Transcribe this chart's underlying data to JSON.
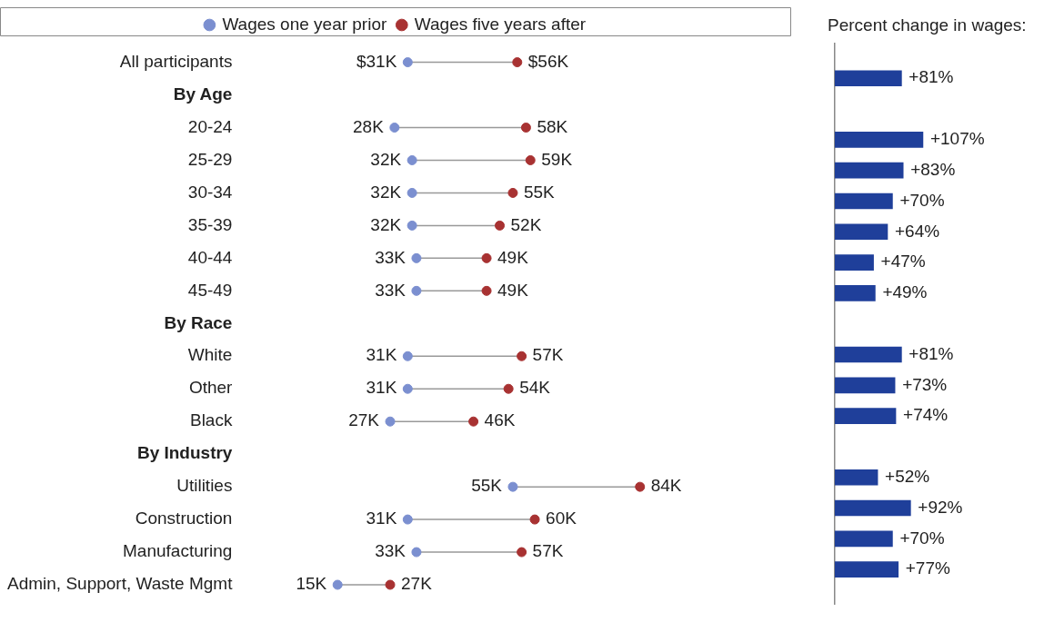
{
  "chart_data": [
    {
      "type": "scatter",
      "orientation": "horizontal",
      "legend": "top",
      "tick_labels": "y",
      "marker": "circle",
      "categories": [
        "All participants",
        "By Age",
        "20-24",
        "25-29",
        "30-34",
        "35-39",
        "40-44",
        "45-49",
        "By Race",
        "White",
        "Other",
        "Black",
        "By Industry",
        "Utilities",
        "Construction",
        "Manufacturing",
        "Admin, Support, Waste Mgmt"
      ],
      "series": [
        {
          "name": "Wages one year prior",
          "color": "#7b8fd0",
          "values": [
            31,
            null,
            28,
            32,
            32,
            32,
            33,
            33,
            null,
            31,
            31,
            27,
            null,
            55,
            31,
            33,
            15
          ],
          "value_labels": [
            "$31K",
            null,
            "28K",
            "32K",
            "32K",
            "32K",
            "33K",
            "33K",
            null,
            "31K",
            "31K",
            "27K",
            null,
            "55K",
            "31K",
            "33K",
            "15K"
          ]
        },
        {
          "name": "Wages five years after",
          "color": "#a83232",
          "values": [
            56,
            null,
            58,
            59,
            55,
            52,
            49,
            49,
            null,
            57,
            54,
            46,
            null,
            84,
            60,
            57,
            27
          ],
          "value_labels": [
            "$56K",
            null,
            "58K",
            "59K",
            "55K",
            "52K",
            "49K",
            "49K",
            null,
            "57K",
            "54K",
            "46K",
            null,
            "84K",
            "60K",
            "57K",
            "27K"
          ]
        }
      ]
    },
    {
      "type": "bar",
      "orientation": "horizontal",
      "title": "Percent change in wages:",
      "tick_labels": false,
      "color": "#1f3f9a",
      "categories": [
        null,
        null,
        null,
        null,
        null,
        null,
        null,
        null,
        null,
        null,
        null,
        null,
        null,
        null,
        null,
        null,
        null
      ],
      "values": [
        81,
        null,
        107,
        83,
        70,
        64,
        47,
        49,
        null,
        81,
        73,
        74,
        null,
        52,
        92,
        70,
        77
      ],
      "value_labels": [
        "+81%",
        null,
        "+107%",
        "+83%",
        "+70%",
        "+64%",
        "+47%",
        "+49%",
        null,
        "+81%",
        "+73%",
        "+74%",
        null,
        "+52%",
        "+92%",
        "+70%",
        "+77%"
      ]
    }
  ]
}
